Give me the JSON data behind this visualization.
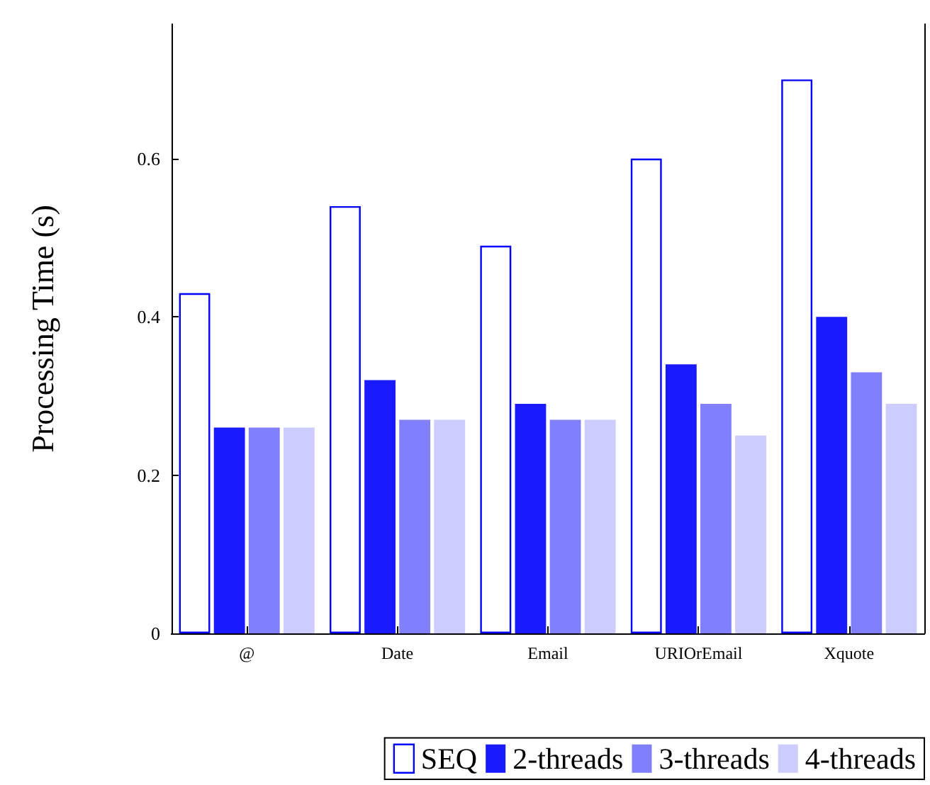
{
  "chart_data": {
    "type": "bar",
    "ylabel": "Processing Time (s)",
    "categories": [
      "@",
      "Date",
      "Email",
      "URIOrEmail",
      "Xquote"
    ],
    "series": [
      {
        "name": "SEQ",
        "color": "#0000ff",
        "values": [
          0.43,
          0.54,
          0.49,
          0.6,
          0.7
        ]
      },
      {
        "name": "2-threads",
        "color": "#1a1aff",
        "values": [
          0.26,
          0.32,
          0.29,
          0.34,
          0.4
        ]
      },
      {
        "name": "3-threads",
        "color": "#8080ff",
        "values": [
          0.26,
          0.27,
          0.27,
          0.29,
          0.33
        ]
      },
      {
        "name": "4-threads",
        "color": "#ccccff",
        "values": [
          0.26,
          0.27,
          0.27,
          0.25,
          0.29
        ]
      }
    ],
    "ylim": [
      0,
      0.77
    ],
    "yticks": [
      0,
      0.2,
      0.4,
      0.6
    ],
    "grid": false,
    "legend": "bottom"
  }
}
